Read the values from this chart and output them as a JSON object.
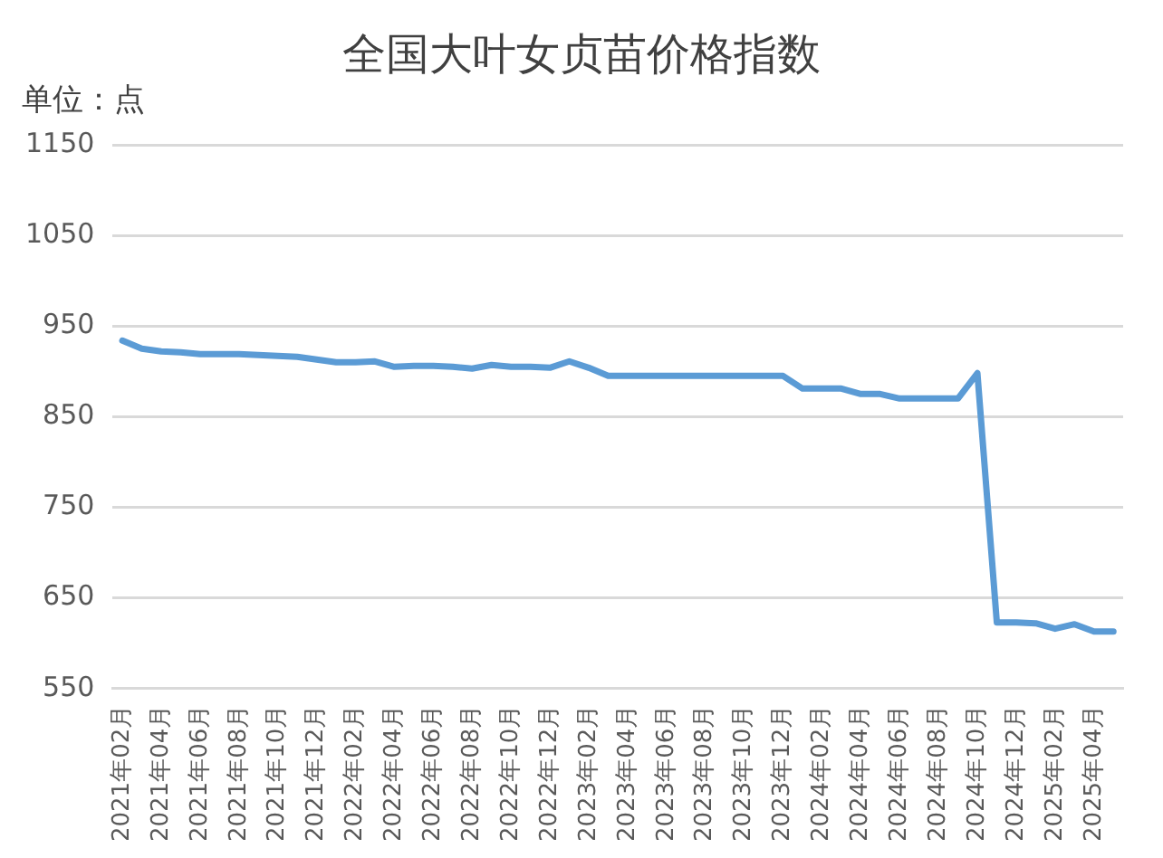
{
  "chart_data": {
    "type": "line",
    "title": "全国大叶女贞苗价格指数",
    "ylabel": "单位：点",
    "categories": [
      "2021年02月",
      null,
      "2021年04月",
      null,
      "2021年06月",
      null,
      "2021年08月",
      null,
      "2021年10月",
      null,
      "2021年12月",
      null,
      "2022年02月",
      null,
      "2022年04月",
      null,
      "2022年06月",
      null,
      "2022年08月",
      null,
      "2022年10月",
      null,
      "2022年12月",
      null,
      "2023年02月",
      null,
      "2023年04月",
      null,
      "2023年06月",
      null,
      "2023年08月",
      null,
      "2023年10月",
      null,
      "2023年12月",
      null,
      "2024年02月",
      null,
      "2024年04月",
      null,
      "2024年06月",
      null,
      "2024年08月",
      null,
      "2024年10月",
      null,
      "2024年12月",
      null,
      "2025年02月",
      null,
      "2025年04月",
      null
    ],
    "series": [
      {
        "color": "#5b9bd5",
        "values": [
          934,
          925,
          922,
          921,
          919,
          919,
          919,
          918,
          917,
          916,
          913,
          910,
          910,
          911,
          905,
          906,
          906,
          905,
          903,
          907,
          905,
          905,
          904,
          911,
          904,
          895,
          895,
          895,
          895,
          895,
          895,
          895,
          895,
          895,
          895,
          881,
          881,
          881,
          875,
          875,
          870,
          870,
          870,
          870,
          898,
          623,
          623,
          622,
          616,
          621,
          613,
          613
        ]
      }
    ],
    "ylim": [
      550,
      1150
    ],
    "yticks": [
      550,
      650,
      750,
      850,
      950,
      1050,
      1150
    ],
    "grid": "y",
    "legend": false,
    "marker": "none",
    "line_style": "solid"
  }
}
